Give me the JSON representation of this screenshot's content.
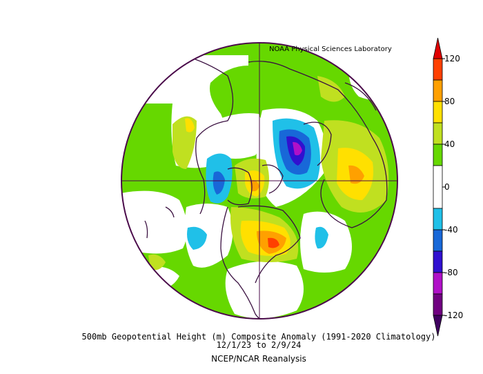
{
  "header": {
    "credit": "NOAA Physical Sciences Laboratory"
  },
  "caption": {
    "title": "500mb Geopotential Height (m) Composite Anomaly (1991-2020 Climatology)",
    "dates": "12/1/23  to 2/9/24",
    "source": "NCEP/NCAR Reanalysis"
  },
  "colorbar": {
    "ticks": [
      {
        "label": "120",
        "value": 120
      },
      {
        "label": "80",
        "value": 80
      },
      {
        "label": "40",
        "value": 40
      },
      {
        "label": "0",
        "value": 0
      },
      {
        "label": "-40",
        "value": -40
      },
      {
        "label": "-80",
        "value": -80
      },
      {
        "label": "-120",
        "value": -120
      }
    ],
    "bands": [
      {
        "min": 100,
        "max": 120,
        "color": "#ff4000"
      },
      {
        "min": 80,
        "max": 100,
        "color": "#ffa000"
      },
      {
        "min": 60,
        "max": 80,
        "color": "#ffe000"
      },
      {
        "min": 40,
        "max": 60,
        "color": "#c0e020"
      },
      {
        "min": 20,
        "max": 40,
        "color": "#66d800"
      },
      {
        "min": -20,
        "max": 20,
        "color": "#ffffff"
      },
      {
        "min": -40,
        "max": -20,
        "color": "#20c0e8"
      },
      {
        "min": -60,
        "max": -40,
        "color": "#1868d8"
      },
      {
        "min": -80,
        "max": -60,
        "color": "#3010d0"
      },
      {
        "min": -100,
        "max": -80,
        "color": "#b010c8"
      },
      {
        "min": -120,
        "max": -100,
        "color": "#700080"
      }
    ],
    "over_color": "#e00000",
    "under_color": "#400060"
  },
  "colors": {
    "border": "#4a0a4a",
    "coast": "#3a1040",
    "green": "#66d800",
    "yellowgreen": "#c0e020",
    "yellow": "#ffe000",
    "orange": "#ffa000",
    "red": "#ff4000",
    "lightblue": "#20c0e8",
    "blue": "#1868d8",
    "indigo": "#3010d0",
    "magenta": "#b010c8"
  }
}
